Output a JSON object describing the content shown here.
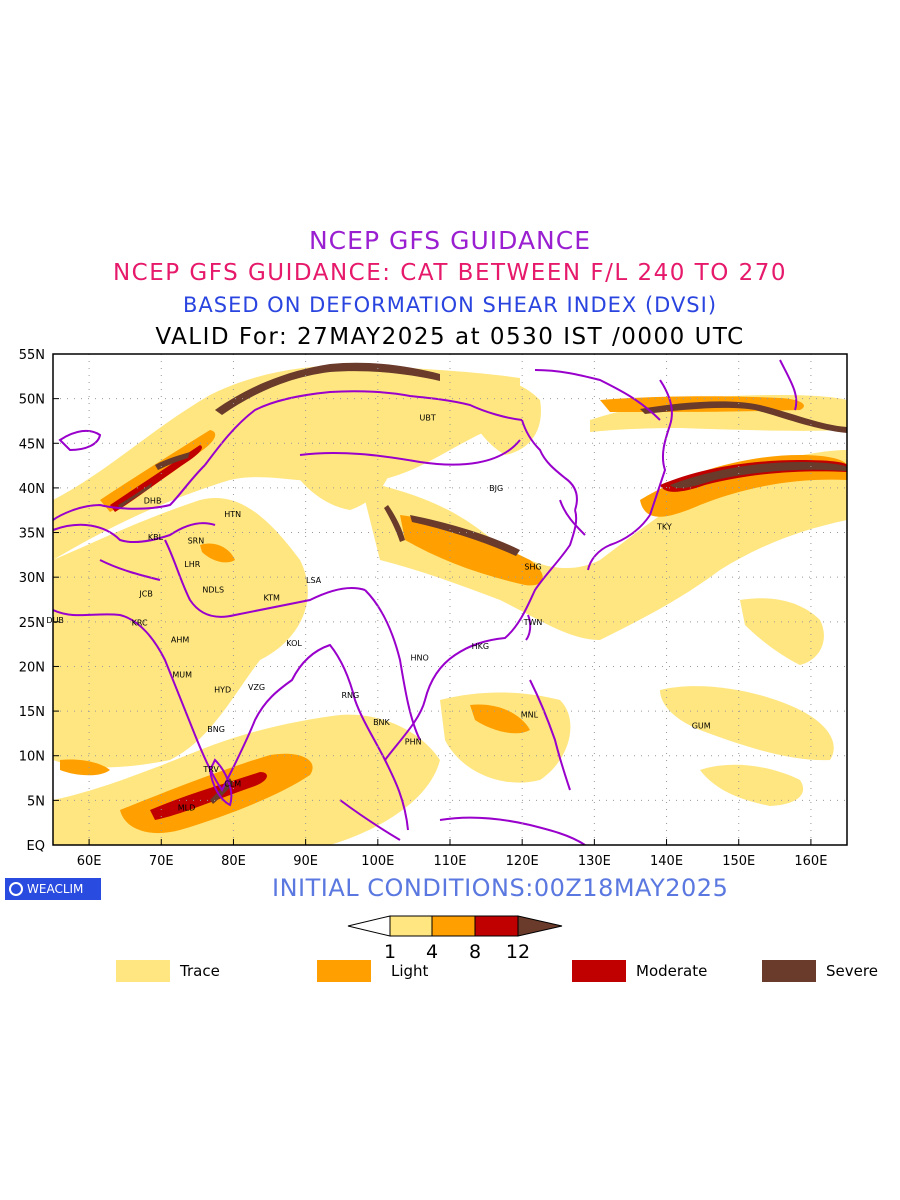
{
  "titles": {
    "line1": "NCEP GFS GUIDANCE",
    "line2": "NCEP GFS GUIDANCE: CAT BETWEEN F/L 240 TO 270",
    "line3": "BASED ON DEFORMATION SHEAR INDEX (DVSI)",
    "line4": "VALID For: 27MAY2025 at 0530 IST /0000 UTC"
  },
  "initial_conditions": "INITIAL CONDITIONS:00Z18MAY2025",
  "logo_text": "WEACLIM",
  "map": {
    "lon_range": [
      55,
      165
    ],
    "lat_range": [
      0,
      55
    ],
    "lon_ticks": [
      "60E",
      "70E",
      "80E",
      "90E",
      "100E",
      "110E",
      "120E",
      "130E",
      "140E",
      "150E",
      "160E"
    ],
    "lat_ticks": [
      "EQ",
      "5N",
      "10N",
      "15N",
      "20N",
      "25N",
      "30N",
      "35N",
      "40N",
      "45N",
      "50N",
      "55N"
    ],
    "border_color": "#9900cc",
    "stations": [
      {
        "code": "UBT",
        "lon": 106.9,
        "lat": 47.9
      },
      {
        "code": "BJG",
        "lon": 116.4,
        "lat": 40.0
      },
      {
        "code": "DHB",
        "lon": 68.8,
        "lat": 38.6
      },
      {
        "code": "HTN",
        "lon": 79.9,
        "lat": 37.1
      },
      {
        "code": "KBL",
        "lon": 69.2,
        "lat": 34.5
      },
      {
        "code": "SRN",
        "lon": 74.8,
        "lat": 34.1
      },
      {
        "code": "LHR",
        "lon": 74.3,
        "lat": 31.5
      },
      {
        "code": "TKY",
        "lon": 139.7,
        "lat": 35.7
      },
      {
        "code": "SHG",
        "lon": 121.5,
        "lat": 31.2
      },
      {
        "code": "LSA",
        "lon": 91.1,
        "lat": 29.7
      },
      {
        "code": "JCB",
        "lon": 67.9,
        "lat": 28.2
      },
      {
        "code": "NDLS",
        "lon": 77.2,
        "lat": 28.6
      },
      {
        "code": "KTM",
        "lon": 85.3,
        "lat": 27.7
      },
      {
        "code": "DUB",
        "lon": 55.3,
        "lat": 25.2
      },
      {
        "code": "KRC",
        "lon": 67.0,
        "lat": 24.9
      },
      {
        "code": "TWN",
        "lon": 121.5,
        "lat": 25.0
      },
      {
        "code": "AHM",
        "lon": 72.6,
        "lat": 23.0
      },
      {
        "code": "KOL",
        "lon": 88.4,
        "lat": 22.6
      },
      {
        "code": "HKG",
        "lon": 114.2,
        "lat": 22.3
      },
      {
        "code": "HNO",
        "lon": 105.8,
        "lat": 21.0
      },
      {
        "code": "MUM",
        "lon": 72.9,
        "lat": 19.1
      },
      {
        "code": "HYD",
        "lon": 78.5,
        "lat": 17.4
      },
      {
        "code": "VZG",
        "lon": 83.2,
        "lat": 17.7
      },
      {
        "code": "RNG",
        "lon": 96.2,
        "lat": 16.8
      },
      {
        "code": "MNL",
        "lon": 121.0,
        "lat": 14.6
      },
      {
        "code": "GUM",
        "lon": 144.8,
        "lat": 13.4
      },
      {
        "code": "BNK",
        "lon": 100.5,
        "lat": 13.8
      },
      {
        "code": "BNG",
        "lon": 77.6,
        "lat": 13.0
      },
      {
        "code": "PHN",
        "lon": 104.9,
        "lat": 11.6
      },
      {
        "code": "TRV",
        "lon": 76.9,
        "lat": 8.5
      },
      {
        "code": "CLM",
        "lon": 79.9,
        "lat": 6.9
      },
      {
        "code": "MLD",
        "lon": 73.5,
        "lat": 4.2
      }
    ]
  },
  "colorbar": {
    "ticks": [
      "1",
      "4",
      "8",
      "12"
    ],
    "colors": [
      "#ffffff",
      "#ffe680",
      "#ffa000",
      "#c00000",
      "#6a3a2a"
    ]
  },
  "legend": [
    {
      "label": "Trace",
      "color": "#ffe680"
    },
    {
      "label": "Light",
      "color": "#ffa000"
    },
    {
      "label": "Moderate",
      "color": "#c00000"
    },
    {
      "label": "Severe",
      "color": "#6a3a2a"
    }
  ]
}
